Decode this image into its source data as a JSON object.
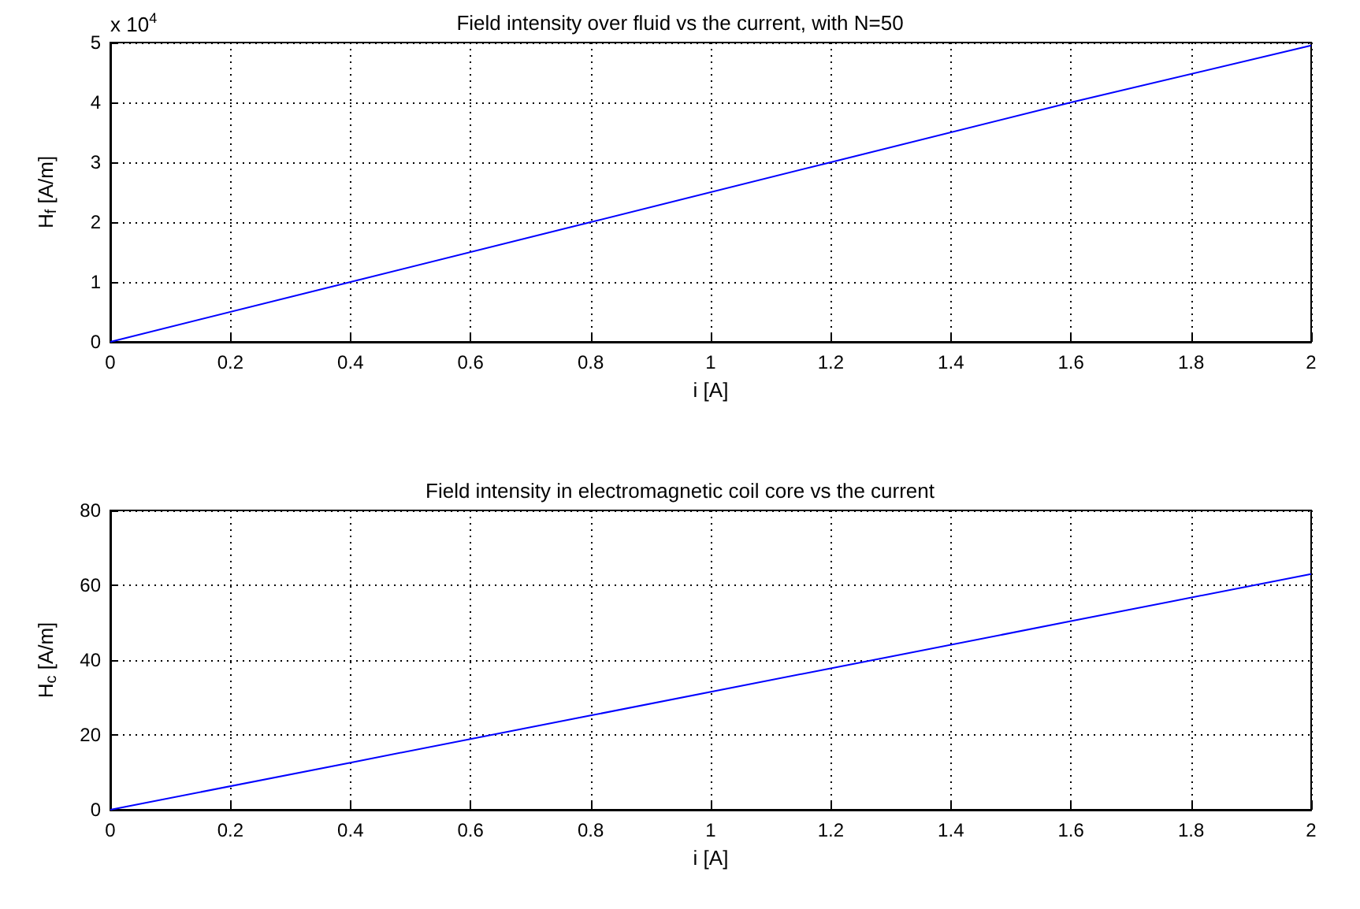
{
  "chart_data": [
    {
      "type": "line",
      "title": "Field intensity over fluid vs the current, with N=50",
      "xlabel": "i [A]",
      "ylabel": "H$_{f}$ [A/m]",
      "annotations": [
        "x 10$^{4}$"
      ],
      "x": [
        0,
        0.4,
        0.8,
        1.2,
        1.6,
        2
      ],
      "series": [
        {
          "color": "#0000ff",
          "values": [
            0,
            1,
            2,
            3,
            4,
            4.95
          ]
        }
      ],
      "xlim": [
        0,
        2
      ],
      "xticks": [
        0,
        0.2,
        0.4,
        0.6,
        0.8,
        1,
        1.2,
        1.4,
        1.6,
        1.8,
        2
      ],
      "ylim": [
        0,
        5
      ],
      "yticks": [
        0,
        1,
        2,
        3,
        4,
        5
      ],
      "grid": true,
      "line_style": "solid"
    },
    {
      "type": "line",
      "title": "Field intensity in electromagnetic coil core vs the current",
      "xlabel": "i [A]",
      "ylabel": "H$_{c}$ [A/m]",
      "x": [
        0,
        0.4,
        0.8,
        1.2,
        1.6,
        2
      ],
      "series": [
        {
          "color": "#0000ff",
          "values": [
            0,
            12.6,
            25.2,
            37.8,
            50.4,
            63
          ]
        }
      ],
      "xlim": [
        0,
        2
      ],
      "xticks": [
        0,
        0.2,
        0.4,
        0.6,
        0.8,
        1,
        1.2,
        1.4,
        1.6,
        1.8,
        2
      ],
      "ylim": [
        0,
        80
      ],
      "yticks": [
        0,
        20,
        40,
        60,
        80
      ],
      "grid": true,
      "line_style": "solid"
    }
  ]
}
